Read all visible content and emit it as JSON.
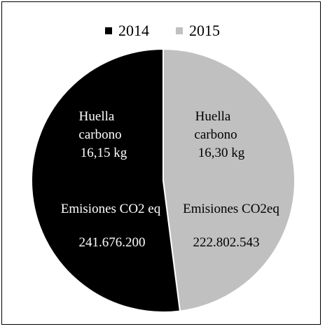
{
  "chart_data": {
    "type": "pie",
    "title": "",
    "legend_position": "top",
    "legend": [
      {
        "name": "2014",
        "color": "#000000"
      },
      {
        "name": "2015",
        "color": "#c0c0c0"
      }
    ],
    "slices": [
      {
        "name": "2014",
        "value": 241676200,
        "color": "#000000",
        "text_color": "#ffffff",
        "huella_label_line1": "Huella",
        "huella_label_line2": "carbono",
        "huella_value": "16,15 kg",
        "emisiones_label": "Emisiones CO2 eq",
        "emisiones_value": "241.676.200"
      },
      {
        "name": "2015",
        "value": 222802543,
        "color": "#c0c0c0",
        "text_color": "#000000",
        "huella_label_line1": "Huella",
        "huella_label_line2": "carbono",
        "huella_value": "16,30 kg",
        "emisiones_label": "Emisiones CO2eq",
        "emisiones_value": "222.802.543"
      }
    ]
  }
}
